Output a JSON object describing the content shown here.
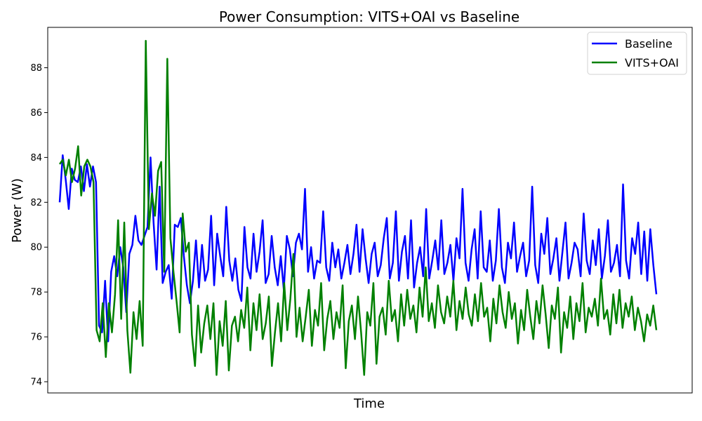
{
  "chart_data": {
    "type": "line",
    "title": "Power Consumption: VITS+OAI vs Baseline",
    "xlabel": "Time",
    "ylabel": "Power (W)",
    "ylim": [
      73.5,
      89.8
    ],
    "xlim": [
      -2,
      106
    ],
    "yticks": [
      74,
      76,
      78,
      80,
      82,
      84,
      86,
      88
    ],
    "x_ticks_shown": false,
    "grid": false,
    "legend": "top-right",
    "series": [
      {
        "name": "Baseline",
        "color": "#0000ff",
        "values": [
          82,
          84.1,
          83,
          81.7,
          83.5,
          83,
          82.9,
          83.6,
          82.5,
          83.7,
          82.7,
          83.6,
          82.9,
          76.5,
          76.2,
          78.5,
          75.8,
          78.9,
          79.6,
          78.7,
          80,
          79.1,
          77.1,
          79.7,
          80.1,
          81.4,
          80.3,
          80.1,
          80.5,
          80.9,
          84,
          81.1,
          79,
          82.7,
          78.4,
          78.9,
          79.2,
          77.7,
          81,
          80.9,
          81.3,
          79.6,
          78.3,
          77.5,
          78.5,
          80.3,
          78.2,
          80.1,
          78.5,
          79,
          81.4,
          78.3,
          80.6,
          79.6,
          78.7,
          81.8,
          79.4,
          78.5,
          79.5,
          78.1,
          77.6,
          80.9,
          79.1,
          78.6,
          80.6,
          78.9,
          79.8,
          81.2,
          78.4,
          78.8,
          80.5,
          79.1,
          78.3,
          79.6,
          78.1,
          80.5,
          79.9,
          78.7,
          80.2,
          80.6,
          79.9,
          82.6,
          78.9,
          80,
          78.6,
          79.4,
          79.3,
          81.6,
          79.1,
          78.5,
          80.2,
          79.1,
          79.9,
          78.6,
          79.3,
          80.1,
          78.8,
          79.7,
          81,
          78.9,
          80.8,
          79.5,
          78.4,
          79.7,
          80.2,
          78.7,
          79.2,
          80.4,
          81.3,
          78.6,
          79.3,
          81.6,
          78.5,
          79.8,
          80.5,
          78.6,
          81.2,
          78.2,
          79.3,
          80,
          78.7,
          81.7,
          78.6,
          79.4,
          80.3,
          79,
          81.2,
          78.8,
          79.3,
          80.1,
          78.5,
          80.4,
          79.5,
          82.6,
          79.3,
          78.5,
          79.9,
          80.8,
          78.6,
          81.6,
          79.1,
          78.9,
          80.3,
          78.5,
          79.4,
          81.7,
          79.1,
          78.4,
          80.2,
          79.5,
          81.1,
          78.9,
          79.6,
          80.2,
          78.7,
          79.4,
          82.7,
          79.2,
          78.4,
          80.6,
          79.7,
          81.3,
          78.8,
          79.5,
          80.4,
          78.5,
          79.8,
          81.1,
          78.6,
          79.3,
          80.2,
          79.9,
          78.7,
          81.5,
          79.4,
          78.8,
          80.3,
          79.2,
          80.8,
          78.6,
          79.6,
          81.2,
          78.9,
          79.3,
          80.1,
          78.7,
          82.8,
          79.4,
          78.6,
          80.4,
          79.7,
          81.1,
          78.8,
          80.7,
          78.5,
          80.8,
          79.2,
          77.9
        ]
      },
      {
        "name": "VITS+OAI",
        "color": "#008000",
        "values": [
          83.7,
          83.9,
          83.2,
          83.9,
          82.9,
          83.5,
          84.5,
          82.3,
          83.6,
          83.9,
          83.6,
          82.9,
          76.3,
          75.8,
          77.5,
          75.1,
          77.5,
          76.2,
          77.9,
          81.2,
          76.8,
          81.1,
          76.3,
          74.4,
          77.1,
          75.9,
          77.6,
          75.6,
          89.2,
          80.8,
          82.4,
          81.4,
          83.4,
          83.8,
          78.9,
          88.4,
          80.4,
          78.9,
          77.6,
          76.2,
          81.5,
          79.8,
          80.2,
          76.1,
          74.7,
          77.4,
          75.3,
          76.6,
          77.4,
          75.9,
          77.5,
          74.3,
          76.7,
          75.6,
          77.6,
          74.5,
          76.5,
          76.9,
          75.8,
          77.2,
          76.4,
          78.2,
          75.4,
          77.5,
          76.3,
          77.9,
          75.9,
          76.6,
          77.8,
          74.7,
          76.2,
          77.5,
          75.8,
          78.4,
          76.3,
          77.7,
          79.7,
          76,
          77.3,
          75.8,
          76.9,
          78.1,
          75.6,
          77.2,
          76.5,
          78.4,
          75.4,
          76.8,
          77.6,
          75.9,
          77.1,
          76.4,
          78.3,
          74.6,
          76.7,
          77.4,
          75.9,
          77.8,
          76.2,
          74.3,
          77.1,
          76.5,
          78.4,
          74.8,
          76.9,
          77.3,
          76.1,
          78.5,
          76.7,
          77.2,
          75.8,
          77.9,
          76.5,
          78.1,
          76.8,
          77.4,
          76.2,
          78.2,
          76.9,
          79.1,
          76.7,
          77.5,
          76.4,
          78.3,
          77.1,
          76.6,
          77.8,
          76.9,
          78.5,
          76.3,
          77.6,
          76.8,
          78.2,
          77,
          76.5,
          77.9,
          76.7,
          78.4,
          76.9,
          77.3,
          75.8,
          77.7,
          76.6,
          78.3,
          77.1,
          76.4,
          78,
          76.8,
          77.5,
          75.7,
          77.2,
          76.3,
          78.1,
          76.9,
          75.9,
          77.6,
          76.6,
          78.3,
          77,
          75.5,
          77.4,
          76.8,
          78.2,
          75.3,
          77.1,
          76.4,
          77.8,
          75.9,
          77.5,
          76.7,
          78.4,
          76.2,
          77.3,
          76.9,
          77.7,
          76.5,
          78.6,
          76.8,
          77.2,
          76.1,
          77.9,
          76.6,
          78.1,
          76.4,
          77.5,
          76.9,
          77.8,
          76.3,
          77.3,
          76.7,
          75.8,
          77,
          76.5,
          77.4,
          76.3
        ]
      }
    ]
  }
}
